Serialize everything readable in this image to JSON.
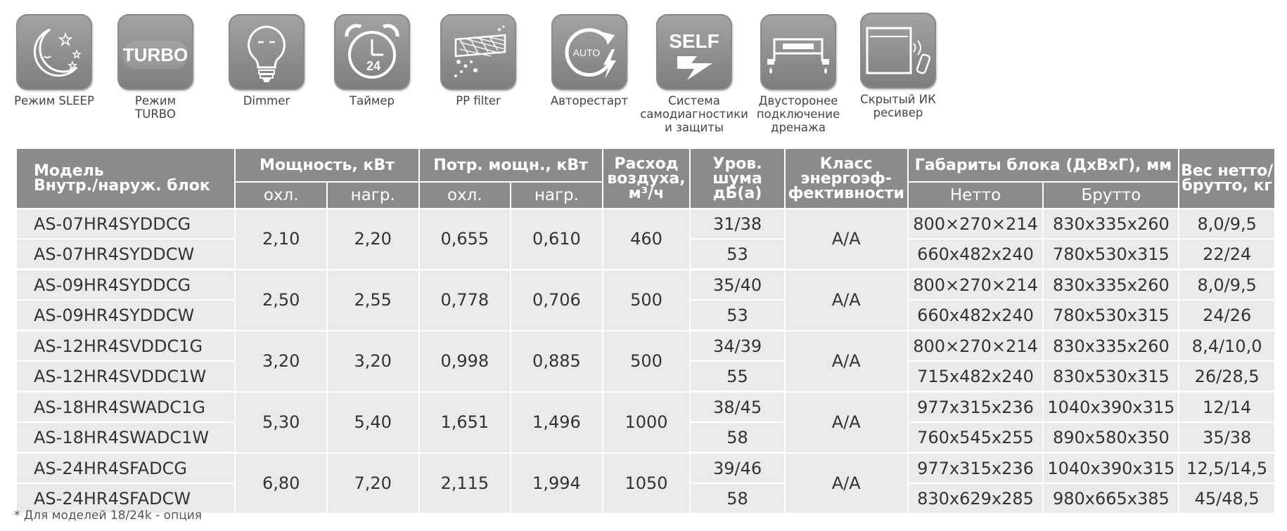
{
  "features": [
    {
      "icon": "moon-stars-icon",
      "label": "Режим SLEEP"
    },
    {
      "icon": "turbo-icon",
      "label": "Режим\nTURBO",
      "icon_text": "TURBO"
    },
    {
      "icon": "lightbulb-icon",
      "label": "Dimmer"
    },
    {
      "icon": "alarm-clock-icon",
      "label": "Таймер",
      "icon_text": "24"
    },
    {
      "icon": "filter-icon",
      "label": "PP filter"
    },
    {
      "icon": "auto-restart-icon",
      "label": "Авторестарт",
      "icon_text": "AUTO"
    },
    {
      "icon": "self-diagnosis-icon",
      "label": "Система\nсамодиагностики\nи защиты",
      "icon_text": "SELF"
    },
    {
      "icon": "two-way-drain-icon",
      "label": "Двусторонее\nподключение\nдренажа"
    },
    {
      "icon": "hidden-ir-receiver-icon",
      "label": "Скрытый ИК\nресивер"
    }
  ],
  "table": {
    "headers": {
      "model": "Модель\nВнутр./наруж. блок",
      "power": "Мощность, кВт",
      "consumption": "Потр. мощн., кВт",
      "airflow": "Расход воздуха, м³/ч",
      "noise": "Уров. шума дБ(а)",
      "energy_class": "Класс энергоэф- фективности",
      "dimensions": "Габариты блока (ДхВхГ), мм",
      "weight": "Вес нетто/ брутто, кг",
      "cooling": "охл.",
      "heating": "нагр.",
      "net": "Нетто",
      "gross": "Брутто"
    },
    "groups": [
      {
        "power_cool": "2,10",
        "power_heat": "2,20",
        "cons_cool": "0,655",
        "cons_heat": "0,610",
        "airflow": "460",
        "energy_class": "A/A",
        "units": [
          {
            "model": "AS-07HR4SYDDCG",
            "noise": "31/38",
            "net": "800×270×214",
            "gross": "830x335x260",
            "weight": "8,0/9,5"
          },
          {
            "model": "AS-07HR4SYDDCW",
            "noise": "53",
            "net": "660x482x240",
            "gross": "780x530x315",
            "weight": "22/24"
          }
        ]
      },
      {
        "power_cool": "2,50",
        "power_heat": "2,55",
        "cons_cool": "0,778",
        "cons_heat": "0,706",
        "airflow": "500",
        "energy_class": "A/A",
        "units": [
          {
            "model": "AS-09HR4SYDDCG",
            "noise": "35/40",
            "net": "800×270×214",
            "gross": "830x335x260",
            "weight": "8,0/9,5"
          },
          {
            "model": "AS-09HR4SYDDCW",
            "noise": "53",
            "net": "660x482x240",
            "gross": "780x530x315",
            "weight": "24/26"
          }
        ]
      },
      {
        "power_cool": "3,20",
        "power_heat": "3,20",
        "cons_cool": "0,998",
        "cons_heat": "0,885",
        "airflow": "500",
        "energy_class": "A/A",
        "units": [
          {
            "model": "AS-12HR4SVDDC1G",
            "noise": "34/39",
            "net": "800×270×214",
            "gross": "830x335x260",
            "weight": "8,4/10,0"
          },
          {
            "model": "AS-12HR4SVDDC1W",
            "noise": "55",
            "net": "715x482x240",
            "gross": "830x530x315",
            "weight": "26/28,5"
          }
        ]
      },
      {
        "power_cool": "5,30",
        "power_heat": "5,40",
        "cons_cool": "1,651",
        "cons_heat": "1,496",
        "airflow": "1000",
        "energy_class": "A/A",
        "units": [
          {
            "model": "AS-18HR4SWADC1G",
            "noise": "38/45",
            "net": "977x315x236",
            "gross": "1040x390x315",
            "weight": "12/14"
          },
          {
            "model": "AS-18HR4SWADC1W",
            "noise": "58",
            "net": "760x545x255",
            "gross": "890x580x350",
            "weight": "35/38"
          }
        ]
      },
      {
        "power_cool": "6,80",
        "power_heat": "7,20",
        "cons_cool": "2,115",
        "cons_heat": "1,994",
        "airflow": "1050",
        "energy_class": "A/A",
        "units": [
          {
            "model": "AS-24HR4SFADCG",
            "noise": "39/46",
            "net": "977x315x236",
            "gross": "1040x390x315",
            "weight": "12,5/14,5"
          },
          {
            "model": "AS-24HR4SFADCW",
            "noise": "58",
            "net": "830x629x285",
            "gross": "980x665x385",
            "weight": "45/48,5"
          }
        ]
      }
    ]
  },
  "footnote": "* Для моделей 18/24k - опция",
  "colors": {
    "header_bg": "#8b8b8b",
    "cell_bg": "#eaeaea",
    "icon_tile": "#8f8f8f"
  }
}
